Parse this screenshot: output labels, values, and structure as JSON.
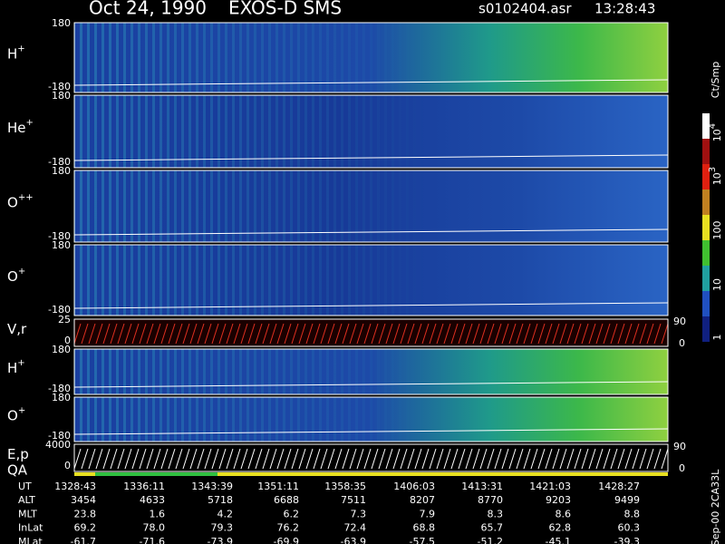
{
  "header": {
    "date": "Oct 24, 1990",
    "instrument": "EXOS-D SMS",
    "file": "s0102404.asr",
    "time": "13:28:43"
  },
  "panels": [
    {
      "label": "H",
      "sup": "+",
      "top": "180",
      "bottom": "-180"
    },
    {
      "label": "He",
      "sup": "+",
      "top": "180",
      "bottom": "-180"
    },
    {
      "label": "O",
      "sup": "++",
      "top": "180",
      "bottom": "-180"
    },
    {
      "label": "O",
      "sup": "+",
      "top": "180",
      "bottom": "-180"
    },
    {
      "label": "V,r",
      "top": "25",
      "bottom": "0",
      "right_top": "90",
      "right_bottom": "0"
    },
    {
      "label": "H",
      "sup": "+",
      "top": "180",
      "bottom": "-180"
    },
    {
      "label": "O",
      "sup": "+",
      "top": "180",
      "bottom": "-180"
    },
    {
      "label": "E,p",
      "top": "4000",
      "bottom": "0",
      "right_top": "90",
      "right_bottom": "0"
    }
  ],
  "qa_label": "QA",
  "colorbar": {
    "unit": "Ct/Smp",
    "labels": [
      {
        "base": "10",
        "exp": "4"
      },
      {
        "base": "10",
        "exp": "3"
      },
      {
        "base": "100"
      },
      {
        "base": "10"
      },
      {
        "base": "1"
      }
    ]
  },
  "side_note": "Sep-00 2CA33L",
  "table": {
    "rows": [
      {
        "name": "UT",
        "values": [
          "1328:43",
          "1336:11",
          "1343:39",
          "1351:11",
          "1358:35",
          "1406:03",
          "1413:31",
          "1421:03",
          "1428:27"
        ]
      },
      {
        "name": "ALT",
        "values": [
          "3454",
          "4633",
          "5718",
          "6688",
          "7511",
          "8207",
          "8770",
          "9203",
          "9499"
        ]
      },
      {
        "name": "MLT",
        "values": [
          "23.8",
          "1.6",
          "4.2",
          "6.2",
          "7.3",
          "7.9",
          "8.3",
          "8.6",
          "8.8"
        ]
      },
      {
        "name": "InLat",
        "values": [
          "69.2",
          "78.0",
          "79.3",
          "76.2",
          "72.4",
          "68.8",
          "65.7",
          "62.8",
          "60.3"
        ]
      },
      {
        "name": "MLat",
        "values": [
          "-61.7",
          "-71.6",
          "-73.9",
          "-69.9",
          "-63.9",
          "-57.5",
          "-51.2",
          "-45.1",
          "-39.3"
        ]
      }
    ]
  }
}
